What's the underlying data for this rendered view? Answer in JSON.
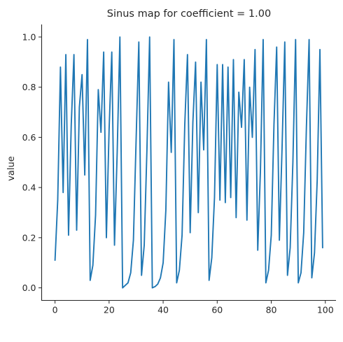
{
  "chart_data": {
    "type": "line",
    "title": "Sinus map for coefficient = 1.00",
    "xlabel": "",
    "ylabel": "value",
    "xlim": [
      -4.95,
      103.95
    ],
    "ylim": [
      -0.05,
      1.05
    ],
    "xticks": [
      0,
      20,
      40,
      60,
      80,
      100
    ],
    "xtick_labels": [
      "0",
      "20",
      "40",
      "60",
      "80",
      "100"
    ],
    "yticks": [
      0.0,
      0.2,
      0.4,
      0.6,
      0.8,
      1.0
    ],
    "ytick_labels": [
      "0.0",
      "0.2",
      "0.4",
      "0.6",
      "0.8",
      "1.0"
    ],
    "grid": false,
    "spines": "left-bottom",
    "colors": {
      "series": "#1f77b4"
    },
    "series": [
      {
        "x": [
          0,
          1,
          2,
          3,
          4,
          5,
          6,
          7,
          8,
          9,
          10,
          11,
          12,
          13,
          14,
          15,
          16,
          17,
          18,
          19,
          20,
          21,
          22,
          23,
          24,
          25,
          26,
          27,
          28,
          29,
          30,
          31,
          32,
          33,
          34,
          35,
          36,
          37,
          38,
          39,
          40,
          41,
          42,
          43,
          44,
          45,
          46,
          47,
          48,
          49,
          50,
          51,
          52,
          53,
          54,
          55,
          56,
          57,
          58,
          59,
          60,
          61,
          62,
          63,
          64,
          65,
          66,
          67,
          68,
          69,
          70,
          71,
          72,
          73,
          74,
          75,
          76,
          77,
          78,
          79,
          80,
          81,
          82,
          83,
          84,
          85,
          86,
          87,
          88,
          89,
          90,
          91,
          92,
          93,
          94,
          95,
          96,
          97,
          98,
          99
        ],
        "values": [
          0.11,
          0.35,
          0.88,
          0.38,
          0.93,
          0.21,
          0.65,
          0.93,
          0.23,
          0.72,
          0.85,
          0.45,
          0.99,
          0.03,
          0.09,
          0.29,
          0.79,
          0.62,
          0.94,
          0.2,
          0.63,
          0.94,
          0.17,
          0.54,
          1.0,
          0.0,
          0.01,
          0.02,
          0.06,
          0.19,
          0.59,
          0.98,
          0.05,
          0.17,
          0.55,
          1.0,
          0.0,
          0.005,
          0.015,
          0.04,
          0.1,
          0.31,
          0.82,
          0.54,
          0.99,
          0.02,
          0.07,
          0.21,
          0.65,
          0.93,
          0.22,
          0.66,
          0.9,
          0.3,
          0.82,
          0.55,
          0.99,
          0.03,
          0.12,
          0.36,
          0.89,
          0.35,
          0.89,
          0.34,
          0.88,
          0.36,
          0.91,
          0.28,
          0.78,
          0.64,
          0.91,
          0.27,
          0.8,
          0.6,
          0.95,
          0.15,
          0.47,
          0.99,
          0.02,
          0.07,
          0.21,
          0.65,
          0.96,
          0.19,
          0.56,
          0.98,
          0.05,
          0.16,
          0.5,
          0.99,
          0.02,
          0.06,
          0.22,
          0.64,
          0.99,
          0.04,
          0.14,
          0.43,
          0.95,
          0.16
        ]
      }
    ]
  }
}
